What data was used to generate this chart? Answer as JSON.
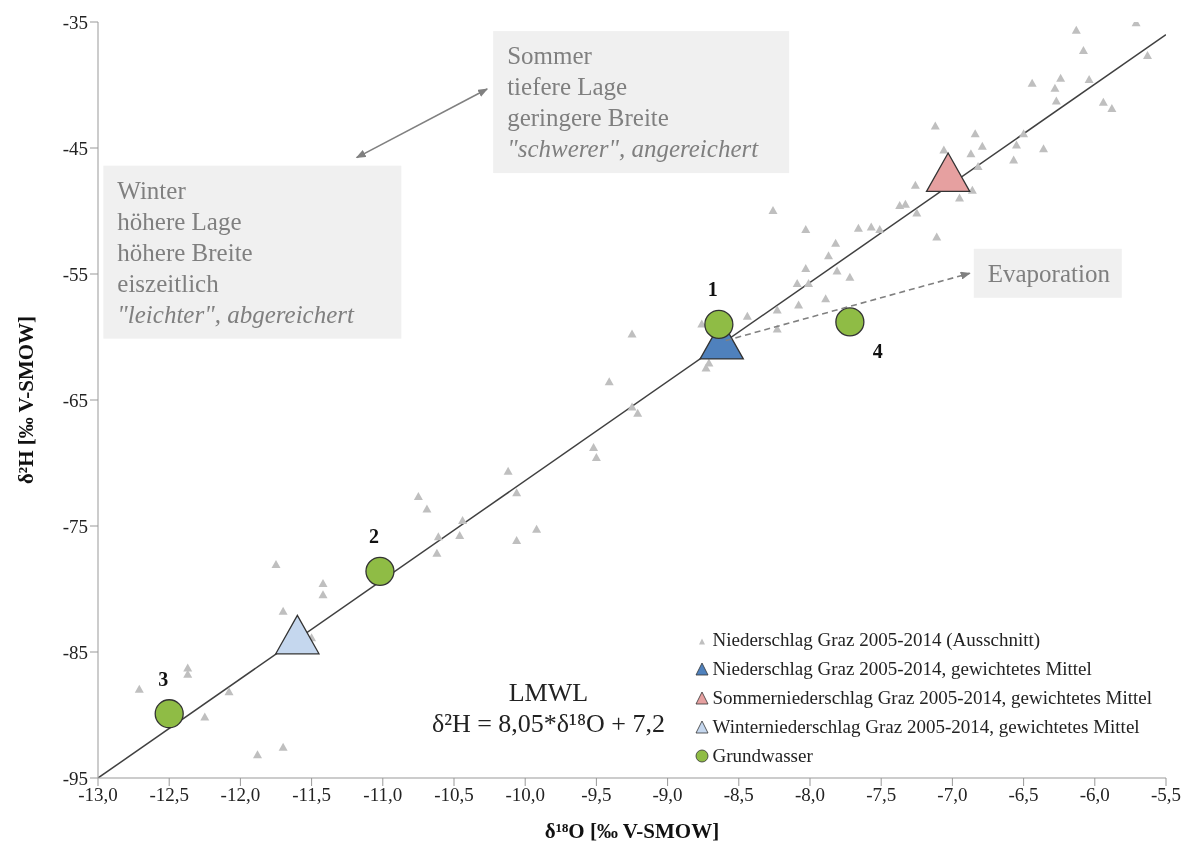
{
  "chart_data": {
    "type": "scatter",
    "xlabel": "δ¹⁸O [‰  V-SMOW]",
    "ylabel": "δ²H [‰  V-SMOW]",
    "xlim": [
      -13,
      -5.5
    ],
    "xticks": [
      {
        "value": -13,
        "label": "-13,0"
      },
      {
        "value": -12.5,
        "label": "-12,5"
      },
      {
        "value": -12,
        "label": "-12,0"
      },
      {
        "value": -11.5,
        "label": "-11,5"
      },
      {
        "value": -11,
        "label": "-11,0"
      },
      {
        "value": -10.5,
        "label": "-10,5"
      },
      {
        "value": -10,
        "label": "-10,0"
      },
      {
        "value": -9.5,
        "label": "-9,5"
      },
      {
        "value": -9,
        "label": "-9,0"
      },
      {
        "value": -8.5,
        "label": "-8,5"
      },
      {
        "value": -8,
        "label": "-8,0"
      },
      {
        "value": -7.5,
        "label": "-7,5"
      },
      {
        "value": -7,
        "label": "-7,0"
      },
      {
        "value": -6.5,
        "label": "-6,5"
      },
      {
        "value": -6,
        "label": "-6,0"
      },
      {
        "value": -5.5,
        "label": "-5,5"
      }
    ],
    "ylim": [
      -95,
      -35
    ],
    "yticks": [
      -95,
      -85,
      -75,
      -65,
      -55,
      -45,
      -35
    ],
    "legend": "bottom right",
    "series": [
      {
        "name": "Niederschlag Graz 2005-2014 (Ausschnitt)",
        "marker": "triangle",
        "color": "#bfbfbf",
        "x": [
          -5.71,
          -6.13,
          -6.08,
          -5.63,
          -6.44,
          -6.24,
          -6.28,
          -6.04,
          -6.27,
          -5.94,
          -5.88,
          -7.12,
          -6.84,
          -6.5,
          -6.55,
          -6.79,
          -6.87,
          -7.06,
          -6.82,
          -6.57,
          -6.36,
          -6.86,
          -6.95,
          -7.26,
          -7.37,
          -7.33,
          -7.25,
          -7.11,
          -8.26,
          -8.03,
          -7.66,
          -7.57,
          -7.51,
          -7.82,
          -7.87,
          -8.03,
          -7.81,
          -7.72,
          -8.09,
          -8.01,
          -8.23,
          -8.08,
          -7.89,
          -8.23,
          -8.44,
          -8.76,
          -9.25,
          -8.71,
          -8.73,
          -9.41,
          -9.25,
          -9.21,
          -9.52,
          -9.5,
          -10.12,
          -10.06,
          -10.75,
          -10.69,
          -10.44,
          -9.92,
          -10.46,
          -10.61,
          -10.06,
          -10.62,
          -11.75,
          -11.42,
          -11.42,
          -11.7,
          -11.5,
          -12.37,
          -12.37,
          -12.71,
          -12.08,
          -12.25,
          -11.7,
          -11.88
        ],
        "values": [
          -35.1,
          -35.7,
          -37.3,
          -37.7,
          -39.9,
          -39.5,
          -40.3,
          -39.6,
          -41.3,
          -41.4,
          -41.9,
          -43.3,
          -43.9,
          -43.9,
          -44.8,
          -44.9,
          -45.5,
          -45.2,
          -46.5,
          -46,
          -45.1,
          -48.4,
          -49,
          -48,
          -49.6,
          -49.5,
          -50.2,
          -52.1,
          -50,
          -51.5,
          -51.4,
          -51.3,
          -51.5,
          -52.6,
          -53.6,
          -54.6,
          -54.8,
          -55.3,
          -55.8,
          -55.8,
          -57.9,
          -57.5,
          -57,
          -59.4,
          -58.4,
          -59,
          -59.8,
          -62.1,
          -62.5,
          -63.6,
          -65.6,
          -66.1,
          -68.8,
          -69.6,
          -70.7,
          -72.4,
          -72.7,
          -73.7,
          -74.6,
          -75.3,
          -75.8,
          -75.9,
          -76.2,
          -77.2,
          -78.1,
          -79.6,
          -80.5,
          -81.8,
          -83.9,
          -86.3,
          -86.8,
          -88,
          -88.2,
          -90.2,
          -92.6,
          -93.2
        ]
      },
      {
        "name": "Niederschlag Graz 2005-2014, gewichtetes Mittel",
        "marker": "triangle",
        "color": "#4f81bd",
        "x": [
          -8.62
        ],
        "values": [
          -60.6
        ]
      },
      {
        "name": "Sommerniederschlag Graz 2005-2014, gewichtetes Mittel",
        "marker": "triangle",
        "color": "#e6a0a0",
        "x": [
          -7.03
        ],
        "values": [
          -47.3
        ]
      },
      {
        "name": "Winterniederschlag Graz 2005-2014, gewichtetes Mittel",
        "marker": "triangle",
        "color": "#c5d7ee",
        "x": [
          -11.6
        ],
        "values": [
          -84.0
        ]
      },
      {
        "name": "Grundwasser",
        "marker": "circle",
        "color": "#8fbc45",
        "x": [
          -8.64,
          -11.02,
          -12.5,
          -7.72
        ],
        "values": [
          -59.0,
          -78.6,
          -89.9,
          -58.8
        ]
      },
      {
        "type": "line",
        "color": "#404040",
        "line_style": "solid",
        "marker": "none",
        "x": [
          -13,
          -5.5
        ],
        "values": [
          -95,
          -36
        ]
      }
    ],
    "annotations": [
      "Winter\nhöhere Lage\nhöhere Breite\neiszeitlich\n\"leichter\", abgereichert",
      "Sommer\ntiefere Lage\ngeringere Breite\n\"schwerer\", angereichert",
      "Evaporation",
      "LMWL\nδ²H = 8,05*δ¹⁸O + 7,2",
      {
        "text": "1",
        "x": -8.64,
        "y": -59.0
      },
      {
        "text": "2",
        "x": -11.02,
        "y": -78.6
      },
      {
        "text": "3",
        "x": -12.5,
        "y": -89.9
      },
      {
        "text": "4",
        "x": -7.72,
        "y": -58.8
      }
    ]
  }
}
